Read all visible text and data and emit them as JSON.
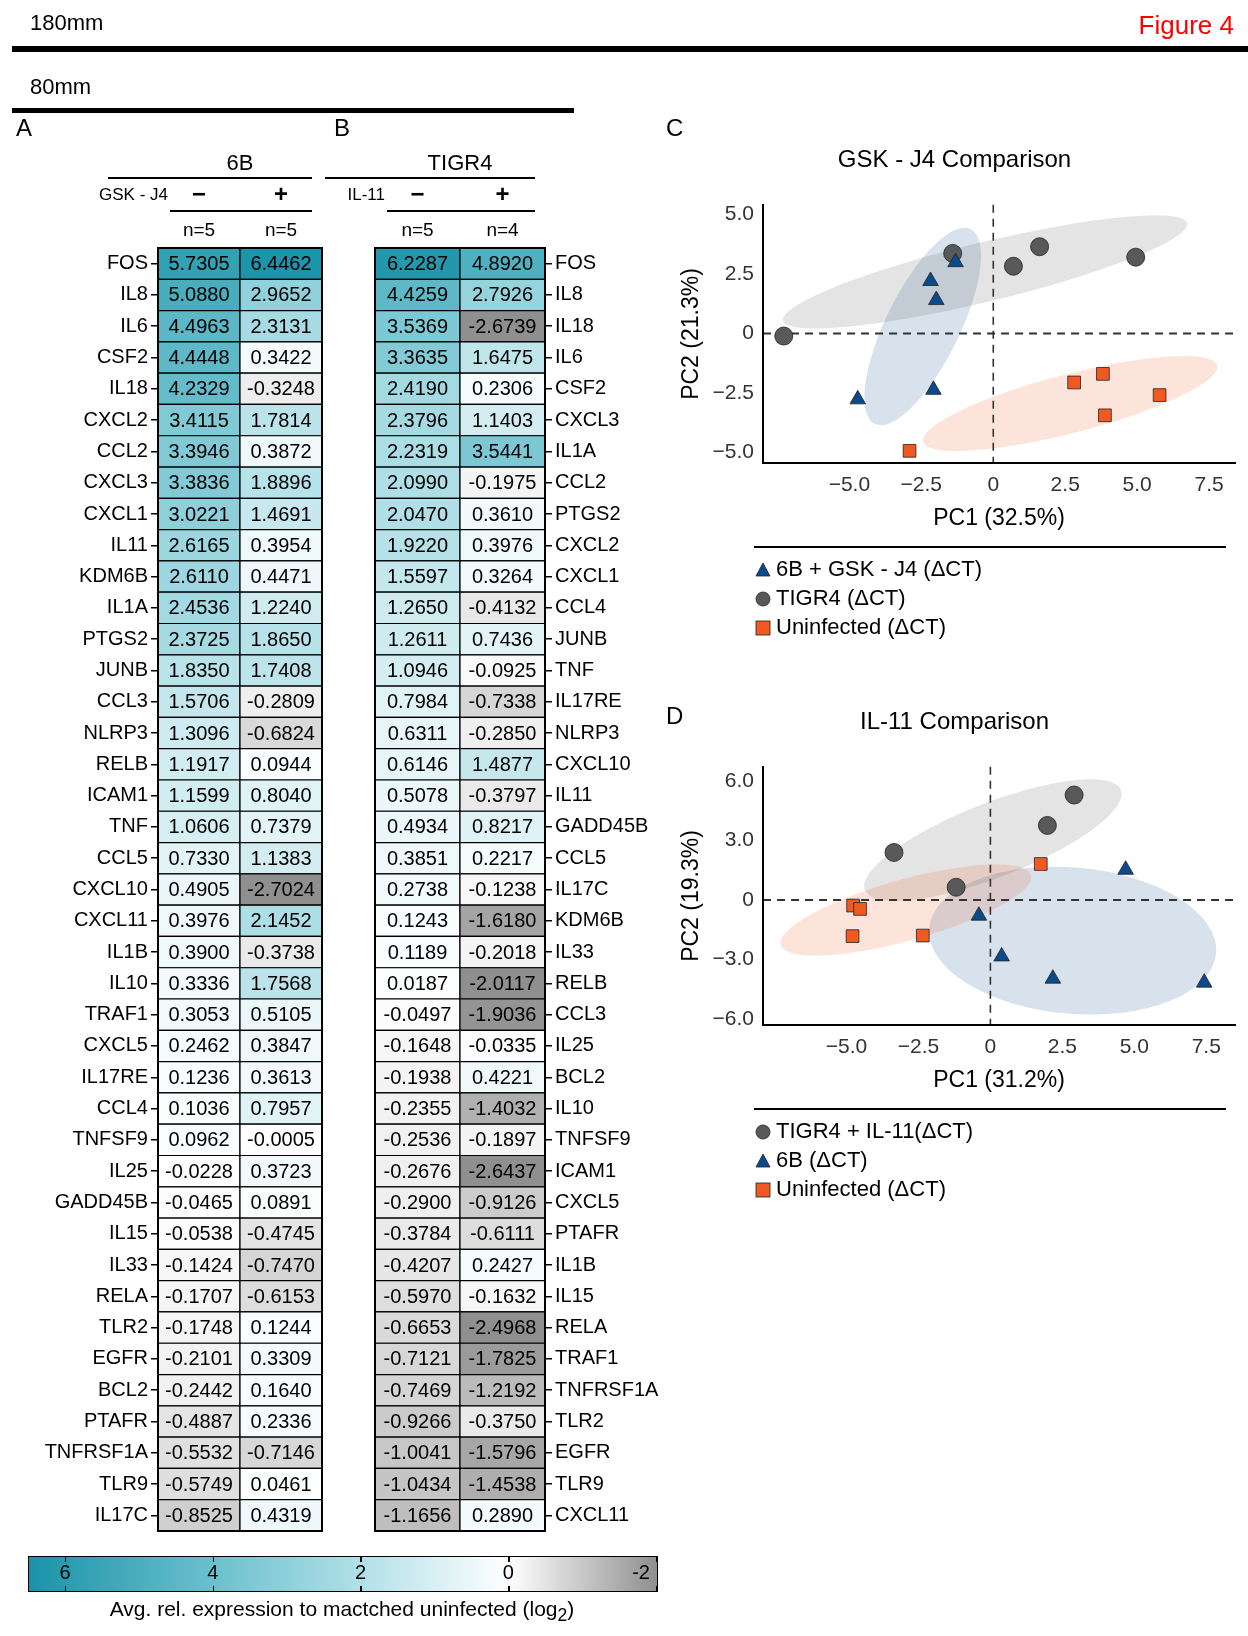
{
  "chart_data": [
    {
      "type": "heatmap",
      "title": "6B",
      "xlabel": "GSK - J4",
      "categories": [
        "−",
        "+"
      ],
      "y_categories": [
        "FOS",
        "IL8",
        "IL6",
        "CSF2",
        "IL18",
        "CXCL2",
        "CCL2",
        "CXCL3",
        "CXCL1",
        "IL11",
        "KDM6B",
        "IL1A",
        "PTGS2",
        "JUNB",
        "CCL3",
        "NLRP3",
        "RELB",
        "ICAM1",
        "TNF",
        "CCL5",
        "CXCL10",
        "CXCL11",
        "IL1B",
        "IL10",
        "TRAF1",
        "CXCL5",
        "IL17RE",
        "CCL4",
        "TNFSF9",
        "IL25",
        "GADD45B",
        "IL15",
        "IL33",
        "RELA",
        "TLR2",
        "EGFR",
        "BCL2",
        "PTAFR",
        "TNFRSF1A",
        "TLR9",
        "IL17C"
      ],
      "cells": [
        [
          5.7305,
          6.4462
        ],
        [
          5.088,
          2.9652
        ],
        [
          4.4963,
          2.3131
        ],
        [
          4.4448,
          0.3422
        ],
        [
          4.2329,
          -0.3248
        ],
        [
          3.4115,
          1.7814
        ],
        [
          3.3946,
          0.3872
        ],
        [
          3.3836,
          1.8896
        ],
        [
          3.0221,
          1.4691
        ],
        [
          2.6165,
          0.3954
        ],
        [
          2.611,
          0.4471
        ],
        [
          2.4536,
          1.224
        ],
        [
          2.3725,
          1.865
        ],
        [
          1.835,
          1.7408
        ],
        [
          1.5706,
          -0.2809
        ],
        [
          1.3096,
          -0.6824
        ],
        [
          1.1917,
          0.0944
        ],
        [
          1.1599,
          0.804
        ],
        [
          1.0606,
          0.7379
        ],
        [
          0.733,
          1.1383
        ],
        [
          0.4905,
          -2.7024
        ],
        [
          0.3976,
          2.1452
        ],
        [
          0.39,
          -0.3738
        ],
        [
          0.3336,
          1.7568
        ],
        [
          0.3053,
          0.5105
        ],
        [
          0.2462,
          0.3847
        ],
        [
          0.1236,
          0.3613
        ],
        [
          0.1036,
          0.7957
        ],
        [
          0.0962,
          -0.0005
        ],
        [
          -0.0228,
          0.3723
        ],
        [
          -0.0465,
          0.0891
        ],
        [
          -0.0538,
          -0.4745
        ],
        [
          -0.1424,
          -0.747
        ],
        [
          -0.1707,
          -0.6153
        ],
        [
          -0.1748,
          0.1244
        ],
        [
          -0.2101,
          0.3309
        ],
        [
          -0.2442,
          0.164
        ],
        [
          -0.4887,
          0.2336
        ],
        [
          -0.5532,
          -0.7146
        ],
        [
          -0.5749,
          0.0461
        ],
        [
          -0.8525,
          0.4319
        ]
      ],
      "cell_labels": [
        [
          "5.7305",
          "6.4462"
        ],
        [
          "5.0880",
          "2.9652"
        ],
        [
          "4.4963",
          "2.3131"
        ],
        [
          "4.4448",
          "0.3422"
        ],
        [
          "4.2329",
          "-0.3248"
        ],
        [
          "3.4115",
          "1.7814"
        ],
        [
          "3.3946",
          "0.3872"
        ],
        [
          "3.3836",
          "1.8896"
        ],
        [
          "3.0221",
          "1.4691"
        ],
        [
          "2.6165",
          "0.3954"
        ],
        [
          "2.6110",
          "0.4471"
        ],
        [
          "2.4536",
          "1.2240"
        ],
        [
          "2.3725",
          "1.8650"
        ],
        [
          "1.8350",
          "1.7408"
        ],
        [
          "1.5706",
          "-0.2809"
        ],
        [
          "1.3096",
          "-0.6824"
        ],
        [
          "1.1917",
          "0.0944"
        ],
        [
          "1.1599",
          "0.8040"
        ],
        [
          "1.0606",
          "0.7379"
        ],
        [
          "0.7330",
          "1.1383"
        ],
        [
          "0.4905",
          "-2.7024"
        ],
        [
          "0.3976",
          "2.1452"
        ],
        [
          "0.3900",
          "-0.3738"
        ],
        [
          "0.3336",
          "1.7568"
        ],
        [
          "0.3053",
          "0.5105"
        ],
        [
          "0.2462",
          "0.3847"
        ],
        [
          "0.1236",
          "0.3613"
        ],
        [
          "0.1036",
          "0.7957"
        ],
        [
          "0.0962",
          "-0.0005"
        ],
        [
          "-0.0228",
          "0.3723"
        ],
        [
          "-0.0465",
          "0.0891"
        ],
        [
          "-0.0538",
          "-0.4745"
        ],
        [
          "-0.1424",
          "-0.7470"
        ],
        [
          "-0.1707",
          "-0.6153"
        ],
        [
          "-0.1748",
          "0.1244"
        ],
        [
          "-0.2101",
          "0.3309"
        ],
        [
          "-0.2442",
          "0.1640"
        ],
        [
          "-0.4887",
          "0.2336"
        ],
        [
          "-0.5532",
          "-0.7146"
        ],
        [
          "-0.5749",
          "0.0461"
        ],
        [
          "-0.8525",
          "0.4319"
        ]
      ],
      "clim": [
        6.5,
        -2
      ],
      "cticks": [
        6,
        4,
        2,
        0,
        -2
      ],
      "clabel": "Avg. rel. expression to mactched uninfected (log$_{2}$)",
      "annotations": [
        "180mm",
        "Figure 4",
        "80mm",
        "A",
        "n=5",
        "n=5"
      ]
    },
    {
      "type": "heatmap",
      "title": "TIGR4",
      "xlabel": "IL-11",
      "categories": [
        "−",
        "+"
      ],
      "y_categories": [
        "FOS",
        "IL8",
        "IL18",
        "IL6",
        "CSF2",
        "CXCL3",
        "IL1A",
        "CCL2",
        "PTGS2",
        "CXCL2",
        "CXCL1",
        "CCL4",
        "JUNB",
        "TNF",
        "IL17RE",
        "NLRP3",
        "CXCL10",
        "IL11",
        "GADD45B",
        "CCL5",
        "IL17C",
        "KDM6B",
        "IL33",
        "RELB",
        "CCL3",
        "IL25",
        "BCL2",
        "IL10",
        "TNFSF9",
        "ICAM1",
        "CXCL5",
        "PTAFR",
        "IL1B",
        "IL15",
        "RELA",
        "TRAF1",
        "TNFRSF1A",
        "TLR2",
        "EGFR",
        "TLR9",
        "CXCL11"
      ],
      "cells": [
        [
          6.2287,
          4.892
        ],
        [
          4.4259,
          2.7926
        ],
        [
          3.5369,
          -2.6739
        ],
        [
          3.3635,
          1.6475
        ],
        [
          2.419,
          0.2306
        ],
        [
          2.3796,
          1.1403
        ],
        [
          2.2319,
          3.5441
        ],
        [
          2.099,
          -0.1975
        ],
        [
          2.047,
          0.361
        ],
        [
          1.922,
          0.3976
        ],
        [
          1.5597,
          0.3264
        ],
        [
          1.265,
          -0.4132
        ],
        [
          1.2611,
          0.7436
        ],
        [
          1.0946,
          -0.0925
        ],
        [
          0.7984,
          -0.7338
        ],
        [
          0.6311,
          -0.285
        ],
        [
          0.6146,
          1.4877
        ],
        [
          0.5078,
          -0.3797
        ],
        [
          0.4934,
          0.8217
        ],
        [
          0.3851,
          0.2217
        ],
        [
          0.2738,
          -0.1238
        ],
        [
          0.1243,
          -1.618
        ],
        [
          0.1189,
          -0.2018
        ],
        [
          0.0187,
          -2.0117
        ],
        [
          -0.0497,
          -1.9036
        ],
        [
          -0.1648,
          -0.0335
        ],
        [
          -0.1938,
          0.4221
        ],
        [
          -0.2355,
          -1.4032
        ],
        [
          -0.2536,
          -0.1897
        ],
        [
          -0.2676,
          -2.6437
        ],
        [
          -0.29,
          -0.9126
        ],
        [
          -0.3784,
          -0.6111
        ],
        [
          -0.4207,
          0.2427
        ],
        [
          -0.597,
          -0.1632
        ],
        [
          -0.6653,
          -2.4968
        ],
        [
          -0.7121,
          -1.7825
        ],
        [
          -0.7469,
          -1.2192
        ],
        [
          -0.9266,
          -0.375
        ],
        [
          -1.0041,
          -1.5796
        ],
        [
          -1.0434,
          -1.4538
        ],
        [
          -1.1656,
          0.289
        ]
      ],
      "cell_labels": [
        [
          "6.2287",
          "4.8920"
        ],
        [
          "4.4259",
          "2.7926"
        ],
        [
          "3.5369",
          "-2.6739"
        ],
        [
          "3.3635",
          "1.6475"
        ],
        [
          "2.4190",
          "0.2306"
        ],
        [
          "2.3796",
          "1.1403"
        ],
        [
          "2.2319",
          "3.5441"
        ],
        [
          "2.0990",
          "-0.1975"
        ],
        [
          "2.0470",
          "0.3610"
        ],
        [
          "1.9220",
          "0.3976"
        ],
        [
          "1.5597",
          "0.3264"
        ],
        [
          "1.2650",
          "-0.4132"
        ],
        [
          "1.2611",
          "0.7436"
        ],
        [
          "1.0946",
          "-0.0925"
        ],
        [
          "0.7984",
          "-0.7338"
        ],
        [
          "0.6311",
          "-0.2850"
        ],
        [
          "0.6146",
          "1.4877"
        ],
        [
          "0.5078",
          "-0.3797"
        ],
        [
          "0.4934",
          "0.8217"
        ],
        [
          "0.3851",
          "0.2217"
        ],
        [
          "0.2738",
          "-0.1238"
        ],
        [
          "0.1243",
          "-1.6180"
        ],
        [
          "0.1189",
          "-0.2018"
        ],
        [
          "0.0187",
          "-2.0117"
        ],
        [
          "-0.0497",
          "-1.9036"
        ],
        [
          "-0.1648",
          "-0.0335"
        ],
        [
          "-0.1938",
          "0.4221"
        ],
        [
          "-0.2355",
          "-1.4032"
        ],
        [
          "-0.2536",
          "-0.1897"
        ],
        [
          "-0.2676",
          "-2.6437"
        ],
        [
          "-0.2900",
          "-0.9126"
        ],
        [
          "-0.3784",
          "-0.6111"
        ],
        [
          "-0.4207",
          "0.2427"
        ],
        [
          "-0.5970",
          "-0.1632"
        ],
        [
          "-0.6653",
          "-2.4968"
        ],
        [
          "-0.7121",
          "-1.7825"
        ],
        [
          "-0.7469",
          "-1.2192"
        ],
        [
          "-0.9266",
          "-0.3750"
        ],
        [
          "-1.0041",
          "-1.5796"
        ],
        [
          "-1.0434",
          "-1.4538"
        ],
        [
          "-1.1656",
          "0.2890"
        ]
      ],
      "annotations": [
        "B",
        "n=5",
        "n=4"
      ]
    },
    {
      "type": "scatter",
      "title": "GSK - J4 Comparison",
      "xlabel": "PC1 (32.5%)",
      "ylabel": "PC2 (21.3%)",
      "xlim": [
        -8,
        8.4
      ],
      "ylim": [
        -5.45,
        5.4
      ],
      "xticks": [
        {
          "value": -5,
          "label": "−5.0"
        },
        {
          "value": -2.5,
          "label": "−2.5"
        },
        0,
        {
          "value": 2.5,
          "label": "2.5"
        },
        {
          "value": 5,
          "label": "5.0"
        },
        {
          "value": 7.5,
          "label": "7.5"
        }
      ],
      "yticks": [
        {
          "value": -5,
          "label": "−5.0"
        },
        {
          "value": -2.5,
          "label": "−2.5"
        },
        0,
        {
          "value": 2.5,
          "label": "2.5"
        },
        {
          "value": 5,
          "label": "5.0"
        }
      ],
      "series": [
        {
          "name": "6B + GSK - J4 (ΔCT)",
          "color": "#0d4a8c",
          "marker": "triangle",
          "x": [
            -1.31,
            -2.18,
            -1.98,
            -4.71,
            -2.08
          ],
          "values": [
            2.99,
            2.2,
            1.4,
            -2.77,
            -2.37
          ]
        },
        {
          "name": "TIGR4 (ΔCT)",
          "color": "#595959",
          "marker": "circle",
          "x": [
            -7.28,
            -1.41,
            0.7,
            1.61,
            4.95
          ],
          "values": [
            -0.11,
            3.36,
            2.82,
            3.64,
            3.2
          ]
        },
        {
          "name": "Uninfected (ΔCT)",
          "color": "#f05a22",
          "marker": "square",
          "x": [
            -2.91,
            2.81,
            3.81,
            3.88,
            5.78
          ],
          "values": [
            -4.93,
            -2.06,
            -1.7,
            -3.44,
            -2.59
          ]
        }
      ],
      "ref_lines": [
        {
          "axis": "x",
          "value": 0,
          "color": "#333333",
          "line_style": "dashed"
        },
        {
          "axis": "y",
          "value": 0,
          "color": "#333333",
          "line_style": "dashed"
        }
      ],
      "legend": "bottom",
      "annotations": [
        "C"
      ]
    },
    {
      "type": "scatter",
      "title": "IL-11 Comparison",
      "xlabel": "PC1 (31.2%)",
      "ylabel": "PC2 (19.3%)",
      "xlim": [
        -7.9,
        8.5
      ],
      "ylim": [
        -6.3,
        6.7
      ],
      "xticks": [
        {
          "value": -5,
          "label": "−5.0"
        },
        {
          "value": -2.5,
          "label": "−2.5"
        },
        0,
        {
          "value": 2.5,
          "label": "2.5"
        },
        {
          "value": 5,
          "label": "5.0"
        },
        {
          "value": 7.5,
          "label": "7.5"
        }
      ],
      "yticks": [
        {
          "value": -6,
          "label": "−6.0"
        },
        {
          "value": -3,
          "label": "−3.0"
        },
        0,
        {
          "value": 3,
          "label": "3.0"
        },
        {
          "value": 6,
          "label": "6.0"
        }
      ],
      "series": [
        {
          "name": "TIGR4 + IL-11(ΔCT)",
          "color": "#595959",
          "marker": "circle",
          "x": [
            2.91,
            1.98,
            -3.35,
            -1.19
          ],
          "values": [
            5.28,
            3.75,
            2.39,
            0.64
          ]
        },
        {
          "name": "6B (ΔCT)",
          "color": "#0d4a8c",
          "marker": "triangle",
          "x": [
            4.7,
            -0.4,
            0.39,
            2.17,
            7.43
          ],
          "values": [
            1.52,
            -0.79,
            -2.84,
            -3.96,
            -4.16
          ]
        },
        {
          "name": "Uninfected (ΔCT)",
          "color": "#f05a22",
          "marker": "square",
          "x": [
            -4.77,
            -4.53,
            -4.79,
            -2.35,
            1.75
          ],
          "values": [
            -0.28,
            -0.45,
            -1.82,
            -1.79,
            1.81
          ]
        }
      ],
      "ref_lines": [
        {
          "axis": "x",
          "value": 0,
          "color": "#333333",
          "line_style": "dashed"
        },
        {
          "axis": "y",
          "value": 0,
          "color": "#333333",
          "line_style": "dashed"
        }
      ],
      "legend": "bottom",
      "annotations": [
        "D"
      ]
    }
  ]
}
